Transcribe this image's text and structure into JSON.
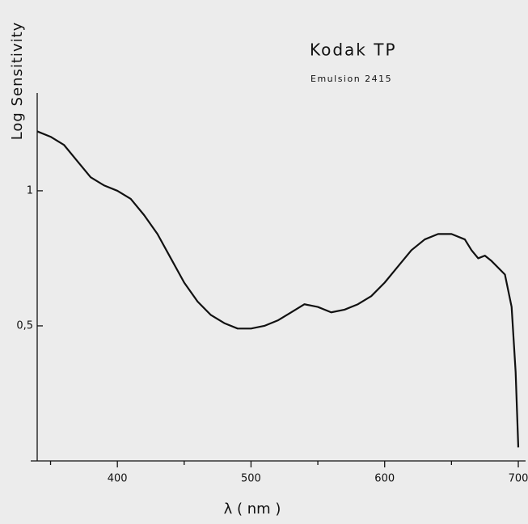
{
  "chart_data": {
    "type": "line",
    "title": "Kodak TP",
    "subtitle": "Emulsion 2415",
    "x_label": "λ ( nm )",
    "y_label": "Log Sensitivity",
    "x": [
      340,
      350,
      360,
      370,
      380,
      390,
      400,
      410,
      420,
      430,
      440,
      450,
      460,
      470,
      480,
      490,
      500,
      510,
      520,
      530,
      540,
      550,
      560,
      570,
      580,
      590,
      600,
      610,
      620,
      630,
      640,
      650,
      660,
      665,
      670,
      675,
      680,
      690,
      695,
      698,
      700
    ],
    "series": [
      {
        "name": "Kodak TP",
        "color": "#111111",
        "values": [
          1.22,
          1.2,
          1.17,
          1.11,
          1.05,
          1.02,
          1.0,
          0.97,
          0.91,
          0.84,
          0.75,
          0.66,
          0.59,
          0.54,
          0.51,
          0.49,
          0.49,
          0.5,
          0.52,
          0.55,
          0.58,
          0.57,
          0.55,
          0.56,
          0.58,
          0.61,
          0.66,
          0.72,
          0.78,
          0.82,
          0.84,
          0.84,
          0.82,
          0.78,
          0.75,
          0.76,
          0.74,
          0.69,
          0.57,
          0.33,
          0.05
        ]
      }
    ],
    "xlim": [
      340,
      700
    ],
    "xticks": [
      400,
      500,
      600,
      700
    ],
    "xminorticks": [
      350,
      450,
      550,
      650
    ],
    "ylim": [
      0,
      1.35
    ],
    "yticks": [
      {
        "value": 0.5,
        "label": "0,5"
      },
      1
    ],
    "grid": false
  }
}
